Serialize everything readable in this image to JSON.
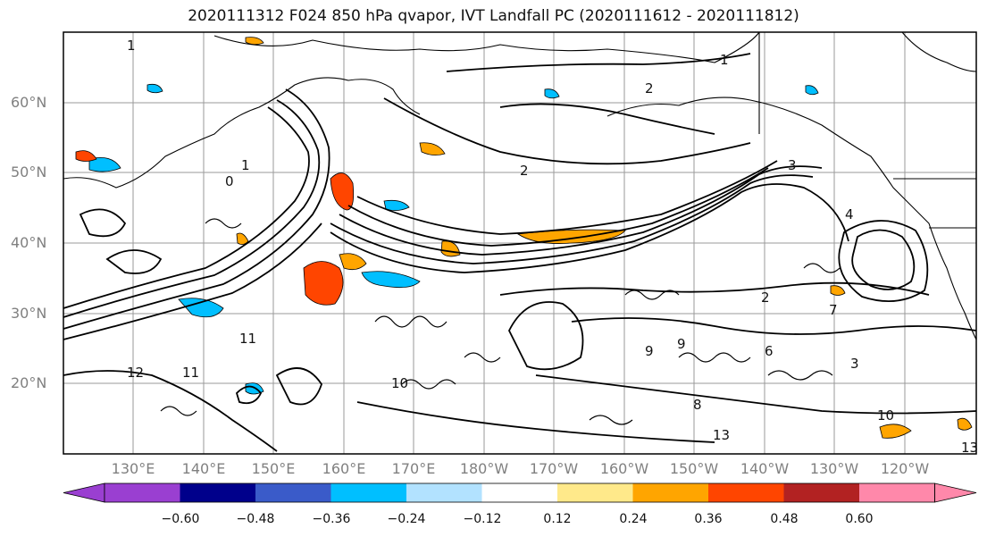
{
  "title": "2020111312 F024 850 hPa qvapor, IVT Landfall PC (2020111612 - 2020111812)",
  "lat_labels": [
    "60°N",
    "50°N",
    "40°N",
    "30°N",
    "20°N"
  ],
  "lon_labels": [
    "130°E",
    "140°E",
    "150°E",
    "160°E",
    "170°E",
    "180°W",
    "170°W",
    "160°W",
    "150°W",
    "140°W",
    "130°W",
    "120°W"
  ],
  "colorbar": {
    "ticks": [
      "−0.60",
      "−0.48",
      "−0.36",
      "−0.24",
      "−0.12",
      "0.12",
      "0.24",
      "0.36",
      "0.48",
      "0.60"
    ],
    "colors": [
      "#9a3fd1",
      "#00008b",
      "#3a5bc9",
      "#00bfff",
      "#b2e2ff",
      "#ffffff",
      "#ffe98a",
      "#ffa500",
      "#ff4500",
      "#b22222",
      "#ff88aa"
    ]
  },
  "contour_labels": [
    "1",
    "1",
    "2",
    "2",
    "1",
    "3",
    "4",
    "2",
    "7",
    "12",
    "11",
    "11",
    "9",
    "10",
    "9",
    "8",
    "6",
    "3",
    "13",
    "10",
    "13",
    "0"
  ],
  "colors": {
    "grid": "#9a9a9a",
    "contour": "#000000",
    "axis_text": "#808080"
  }
}
